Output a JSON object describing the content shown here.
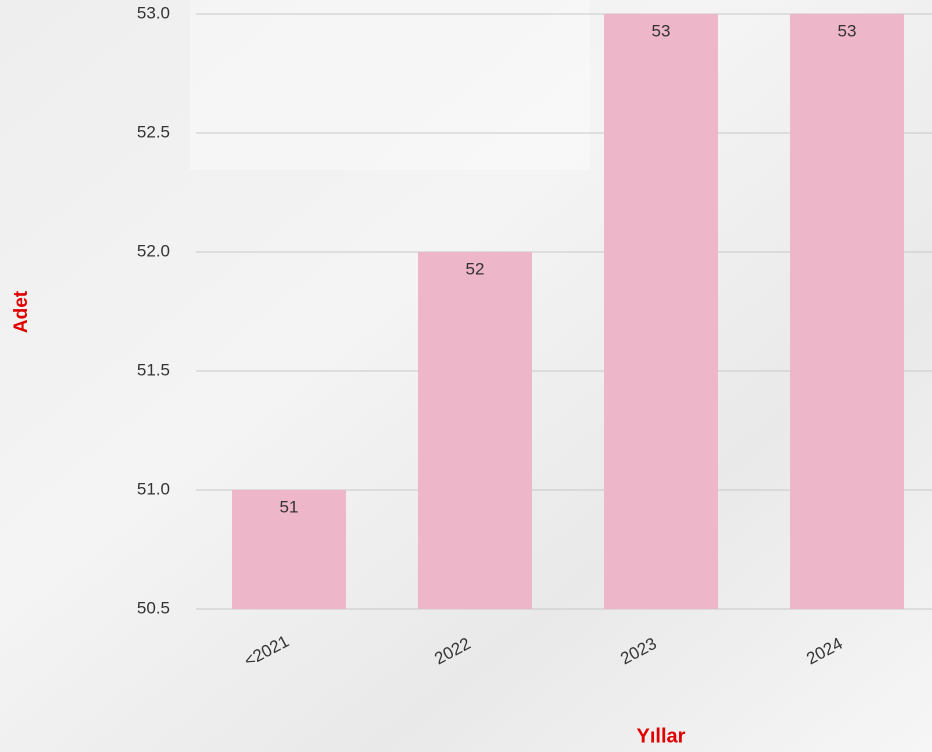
{
  "chart_data": {
    "type": "bar",
    "y_axis_label": "Adet",
    "x_axis_label": "Yıllar",
    "categories": [
      "<2021",
      "2022",
      "2023",
      "2024"
    ],
    "values": [
      51,
      52,
      53,
      53
    ],
    "color": "#eeb6c9",
    "ylim": [
      50.5,
      53
    ],
    "yticks": [
      50.5,
      {
        "value": 51,
        "label": "51.0"
      },
      51.5,
      {
        "value": 52,
        "label": "52.0"
      },
      52.5,
      {
        "value": 53,
        "label": "53.0"
      }
    ],
    "grid": true
  }
}
